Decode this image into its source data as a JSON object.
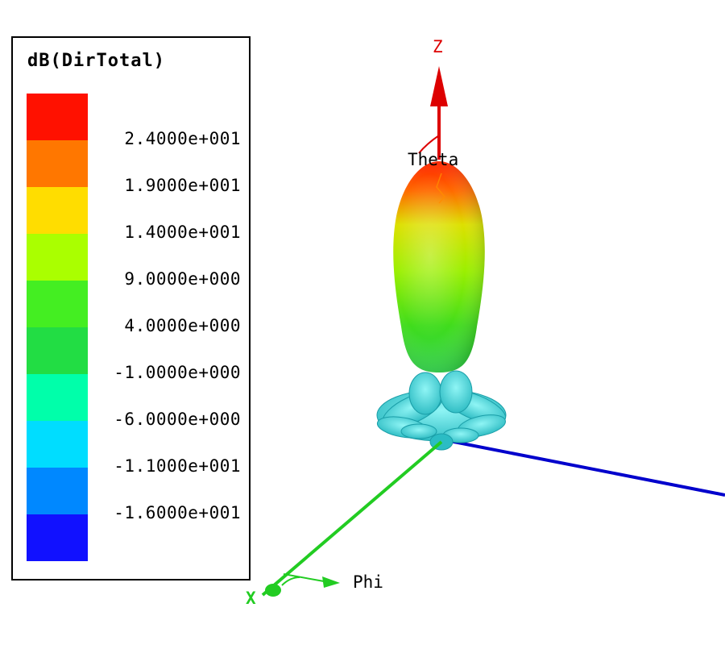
{
  "legend": {
    "title": "dB(DirTotal)",
    "colors": [
      "#ff1100",
      "#ff7700",
      "#ffdd00",
      "#aaff00",
      "#44ee22",
      "#22dd44",
      "#00ffaa",
      "#00ddff",
      "#0088ff",
      "#1111ff"
    ],
    "values": [
      "2.4000e+001",
      "1.9000e+001",
      "1.4000e+001",
      "9.0000e+000",
      "4.0000e+000",
      "-1.0000e+000",
      "-6.0000e+000",
      "-1.1000e+001",
      "-1.6000e+001"
    ]
  },
  "axes": {
    "z_label": "Z",
    "theta_label": "Theta",
    "phi_label": "Phi",
    "x_label": "X",
    "z_color": "#dd0000",
    "x_color": "#22cc22",
    "y_color": "#0000cc"
  }
}
